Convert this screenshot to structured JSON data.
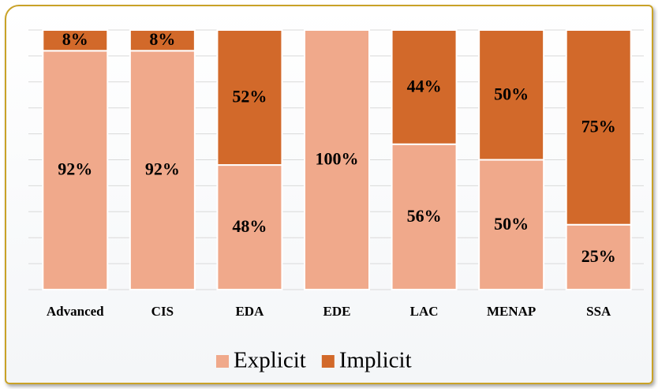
{
  "chart_data": {
    "type": "stacked_bar",
    "categories": [
      "Advanced",
      "CIS",
      "EDA",
      "EDE",
      "LAC",
      "MENAP",
      "SSA"
    ],
    "series": [
      {
        "name": "Explicit",
        "color": "#f0a98b",
        "values": [
          92,
          92,
          48,
          100,
          56,
          50,
          25
        ],
        "value_labels": [
          "92%",
          "92%",
          "48%",
          "100%",
          "56%",
          "50%",
          "25%"
        ]
      },
      {
        "name": "Implicit",
        "color": "#d2692a",
        "values": [
          8,
          8,
          52,
          0,
          44,
          50,
          75
        ],
        "value_labels": [
          "8%",
          "8%",
          "52%",
          null,
          "44%",
          "50%",
          "75%"
        ]
      }
    ],
    "ylim": [
      0,
      100
    ],
    "yticks": [
      0,
      10,
      20,
      30,
      40,
      50,
      60,
      70,
      80,
      90,
      100
    ],
    "grid": true,
    "legend": "bottom"
  }
}
